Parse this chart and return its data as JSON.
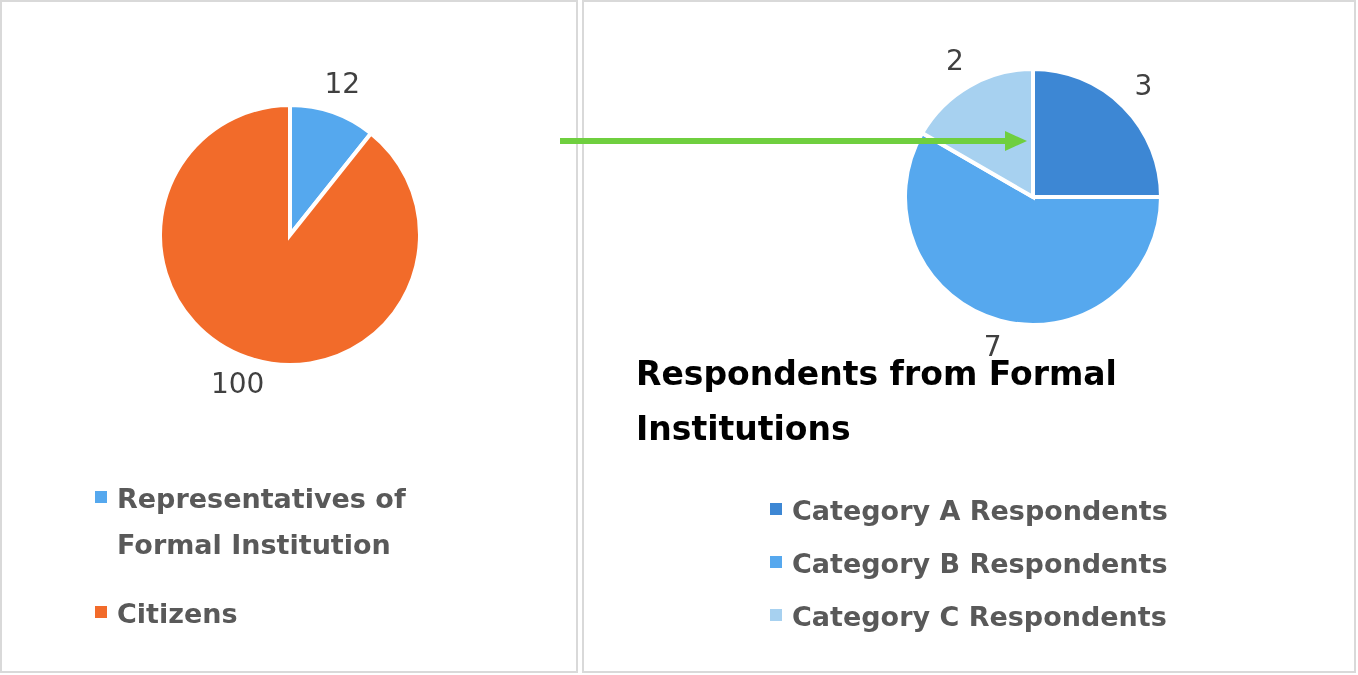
{
  "chart_data": [
    {
      "type": "pie",
      "categories": [
        "Representatives of Formal Institution",
        "Citizens"
      ],
      "values": [
        12,
        100
      ],
      "colors": [
        "#55a8ee",
        "#f26b2a"
      ],
      "data_labels": true,
      "legend": "bottom"
    },
    {
      "type": "pie",
      "title": "Respondents from Formal Institutions",
      "categories": [
        "Category A Respondents",
        "Category B Respondents",
        "Category C Respondents"
      ],
      "values": [
        3,
        7,
        2
      ],
      "colors": [
        "#3d87d4",
        "#56a8ee",
        "#a7d1f0"
      ],
      "data_labels": true,
      "legend": "bottom"
    }
  ]
}
